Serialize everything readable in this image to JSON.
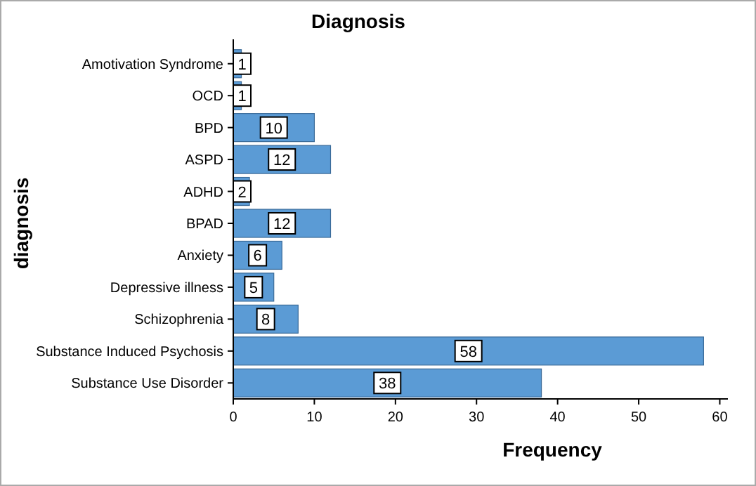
{
  "chart_data": {
    "type": "bar",
    "orientation": "horizontal",
    "title": "Diagnosis",
    "xlabel": "Frequency",
    "ylabel": "diagnosis",
    "categories": [
      "Amotivation Syndrome",
      "OCD",
      "BPD",
      "ASPD",
      "ADHD",
      "BPAD",
      "Anxiety",
      "Depressive illness",
      "Schizophrenia",
      "Substance Induced Psychosis",
      "Substance Use Disorder"
    ],
    "values": [
      1,
      1,
      10,
      12,
      2,
      12,
      6,
      5,
      8,
      58,
      38
    ],
    "color": "#5b9bd5",
    "xlim": [
      0,
      61
    ],
    "xticks": [
      0,
      10,
      20,
      30,
      40,
      50,
      60
    ],
    "data_labels": true,
    "grid": false
  }
}
